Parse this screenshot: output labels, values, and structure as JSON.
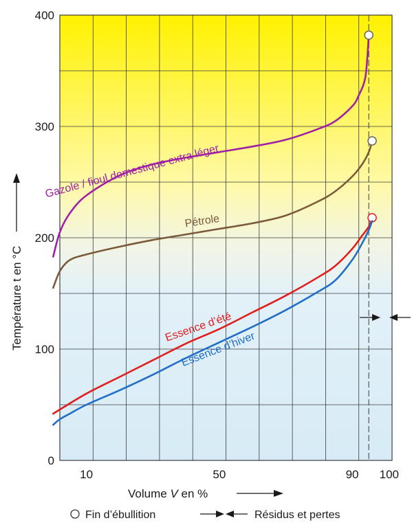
{
  "chart_data": {
    "type": "line",
    "xlabel_prefix": "Volume ",
    "xlabel_var": "V",
    "xlabel_suffix": " en %",
    "ylabel": "Température t en °C",
    "x_ticks": [
      "10",
      "50",
      "90",
      "100"
    ],
    "y_ticks": [
      "0",
      "100",
      "200",
      "300",
      "400"
    ],
    "xlim": [
      0,
      100
    ],
    "ylim": [
      0,
      400
    ],
    "grid": true,
    "final_volume_marker": 95,
    "series": [
      {
        "key": "gazole",
        "name": "Gazole / fioul domestique extra léger",
        "color": "#a020a8",
        "x": [
          0,
          2,
          5,
          10,
          20,
          30,
          40,
          50,
          60,
          70,
          80,
          85,
          90,
          92,
          94,
          95
        ],
        "y": [
          183,
          205,
          222,
          238,
          256,
          266,
          272,
          277,
          282,
          288,
          298,
          305,
          318,
          328,
          345,
          382
        ],
        "end_marker": true
      },
      {
        "key": "petrole",
        "name": "Pétrole",
        "color": "#7a5a3a",
        "x": [
          0,
          2,
          5,
          10,
          20,
          30,
          40,
          50,
          60,
          70,
          80,
          85,
          90,
          93,
          95,
          96
        ],
        "y": [
          155,
          170,
          180,
          185,
          192,
          198,
          203,
          208,
          213,
          220,
          233,
          242,
          255,
          266,
          277,
          287
        ],
        "end_marker": true
      },
      {
        "key": "ete",
        "name": "Essence d’été",
        "color": "#e01e1e",
        "x": [
          0,
          10,
          20,
          30,
          40,
          50,
          60,
          70,
          80,
          85,
          90,
          93,
          95,
          96
        ],
        "y": [
          42,
          60,
          75,
          90,
          105,
          118,
          133,
          148,
          165,
          175,
          190,
          202,
          210,
          218
        ],
        "end_marker": true
      },
      {
        "key": "hiver",
        "name": "Essence d’hiver",
        "color": "#1f6fc8",
        "x": [
          0,
          2,
          5,
          10,
          20,
          30,
          40,
          50,
          60,
          70,
          80,
          85,
          90,
          93,
          95,
          96
        ],
        "y": [
          32,
          37,
          42,
          50,
          63,
          77,
          92,
          106,
          120,
          135,
          152,
          162,
          180,
          195,
          207,
          215
        ],
        "end_marker": false
      }
    ],
    "legend": {
      "end_marker_label": "Fin d’ébullition",
      "residue_label": "Résidus et pertes"
    }
  }
}
